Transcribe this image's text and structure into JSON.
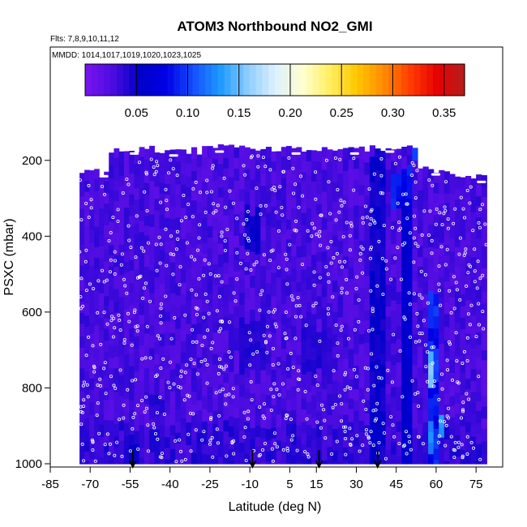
{
  "chart_data": {
    "type": "heatmap",
    "title": "ATOM3 Northbound NO2_GMI",
    "flights_note": "Flts: 7,8,9,10,11,12",
    "dates_note": "MMDD: 1014,1017,1019,1020,1023,1025",
    "xlabel": "Latitude (deg N)",
    "ylabel": "PSXC (mbar)",
    "xlim": [
      -85,
      85
    ],
    "ylim": [
      1000,
      100
    ],
    "x_ticks": [
      -85,
      -70,
      -55,
      -40,
      -25,
      -10,
      5,
      15,
      30,
      45,
      60,
      75
    ],
    "y_ticks": [
      200,
      400,
      600,
      800,
      1000
    ],
    "colorbar": {
      "range": [
        0,
        0.37
      ],
      "ticks": [
        0.05,
        0.1,
        0.15,
        0.2,
        0.25,
        0.3,
        0.35
      ],
      "tick_labels": [
        "0.05",
        "0.10",
        "0.15",
        "0.20",
        "0.25",
        "0.30",
        "0.35"
      ],
      "colors": [
        "#7a14f0",
        "#4d0ce0",
        "#0000c8",
        "#0000e6",
        "#1450ff",
        "#1e9bff",
        "#8ccdff",
        "#dcf0ff",
        "#ffffd2",
        "#fff064",
        "#ffc800",
        "#ff8c00",
        "#ff3c00",
        "#e60000",
        "#b41e1e"
      ]
    },
    "arrows_latitude": [
      -54,
      -9,
      16,
      38
    ],
    "columns": [
      {
        "lat": [
          -74,
          -63
        ],
        "p_top": 230
      },
      {
        "lat": [
          -63,
          -44
        ],
        "p_top": 170
      },
      {
        "lat": [
          -44,
          -28
        ],
        "p_top": 175
      },
      {
        "lat": [
          -28,
          -2
        ],
        "p_top": 165
      },
      {
        "lat": [
          -2,
          15
        ],
        "p_top": 170
      },
      {
        "lat": [
          15,
          35
        ],
        "p_top": 170
      },
      {
        "lat": [
          35,
          53
        ],
        "p_top": 165
      },
      {
        "lat": [
          53,
          65
        ],
        "p_top": 225
      },
      {
        "lat": [
          65,
          79
        ],
        "p_top": 245
      }
    ],
    "enhancements": [
      {
        "lat": [
          -56,
          -52
        ],
        "p": [
          940,
          1000
        ],
        "value": 0.05
      },
      {
        "lat": [
          -48,
          -42
        ],
        "p": [
          820,
          880
        ],
        "value": 0.04
      },
      {
        "lat": [
          -12,
          -6
        ],
        "p": [
          330,
          450
        ],
        "value": 0.05
      },
      {
        "lat": [
          -14,
          -4
        ],
        "p": [
          620,
          760
        ],
        "value": 0.04
      },
      {
        "lat": [
          10,
          20
        ],
        "p": [
          640,
          760
        ],
        "value": 0.04
      },
      {
        "lat": [
          36,
          41
        ],
        "p": [
          180,
          1000
        ],
        "value": 0.05
      },
      {
        "lat": [
          44,
          50
        ],
        "p": [
          220,
          330
        ],
        "value": 0.09
      },
      {
        "lat": [
          47,
          51
        ],
        "p": [
          320,
          1000
        ],
        "value": 0.06
      },
      {
        "lat": [
          57,
          60
        ],
        "p": [
          540,
          1000
        ],
        "value": 0.09
      },
      {
        "lat": [
          58,
          59.5
        ],
        "p": [
          710,
          790
        ],
        "value": 0.14
      },
      {
        "lat": [
          58,
          59.5
        ],
        "p": [
          880,
          960
        ],
        "value": 0.13
      },
      {
        "lat": [
          61,
          63
        ],
        "p": [
          860,
          920
        ],
        "value": 0.12
      },
      {
        "lat": [
          51,
          56
        ],
        "p": [
          160,
          200
        ],
        "value": 0.11
      }
    ]
  }
}
